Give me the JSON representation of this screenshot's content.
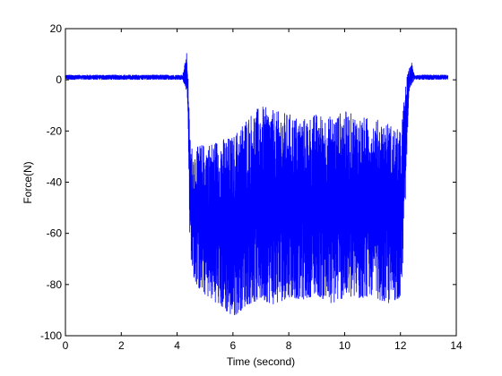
{
  "chart_data": {
    "type": "line",
    "title": "",
    "xlabel": "Time (second)",
    "ylabel": "Force(N)",
    "xlim": [
      0,
      14
    ],
    "ylim": [
      -100,
      20
    ],
    "xticks": [
      0,
      2,
      4,
      6,
      8,
      10,
      12,
      14
    ],
    "yticks": [
      -100,
      -80,
      -60,
      -40,
      -20,
      0,
      20
    ],
    "xtick_labels": [
      "0",
      "2",
      "4",
      "6",
      "8",
      "10",
      "12",
      "14"
    ],
    "ytick_labels": [
      "-100",
      "-80",
      "-60",
      "-40",
      "-20",
      "0",
      "20"
    ],
    "grid": false,
    "series": [
      {
        "color": "#0000ff",
        "x": [
          0,
          0.5,
          1,
          1.5,
          2,
          2.5,
          3,
          3.5,
          4,
          4.2,
          4.35,
          4.4,
          4.45,
          4.5,
          4.6,
          4.8,
          5,
          5.5,
          6,
          6.5,
          7,
          7.5,
          8,
          8.5,
          9,
          9.5,
          10,
          10.5,
          11,
          11.5,
          12,
          12.1,
          12.2,
          12.3,
          12.4,
          12.5,
          13,
          13.5,
          13.7
        ],
        "y_upper": [
          2,
          2,
          2,
          2,
          2,
          2,
          2,
          2,
          2,
          2,
          11,
          0,
          -20,
          -25,
          -28,
          -25,
          -25,
          -23,
          -22,
          -14,
          -10,
          -12,
          -13,
          -15,
          -13,
          -14,
          -12,
          -14,
          -15,
          -16,
          -20,
          -10,
          0,
          4,
          7,
          2,
          2,
          2,
          2
        ],
        "y_lower": [
          0,
          0,
          0,
          0,
          0,
          0,
          0,
          0,
          0,
          0,
          -5,
          -20,
          -60,
          -70,
          -78,
          -82,
          -84,
          -88,
          -93,
          -88,
          -86,
          -88,
          -85,
          -86,
          -84,
          -88,
          -85,
          -86,
          -84,
          -88,
          -85,
          -70,
          -40,
          -5,
          -2,
          0,
          0,
          0,
          0
        ]
      }
    ]
  }
}
